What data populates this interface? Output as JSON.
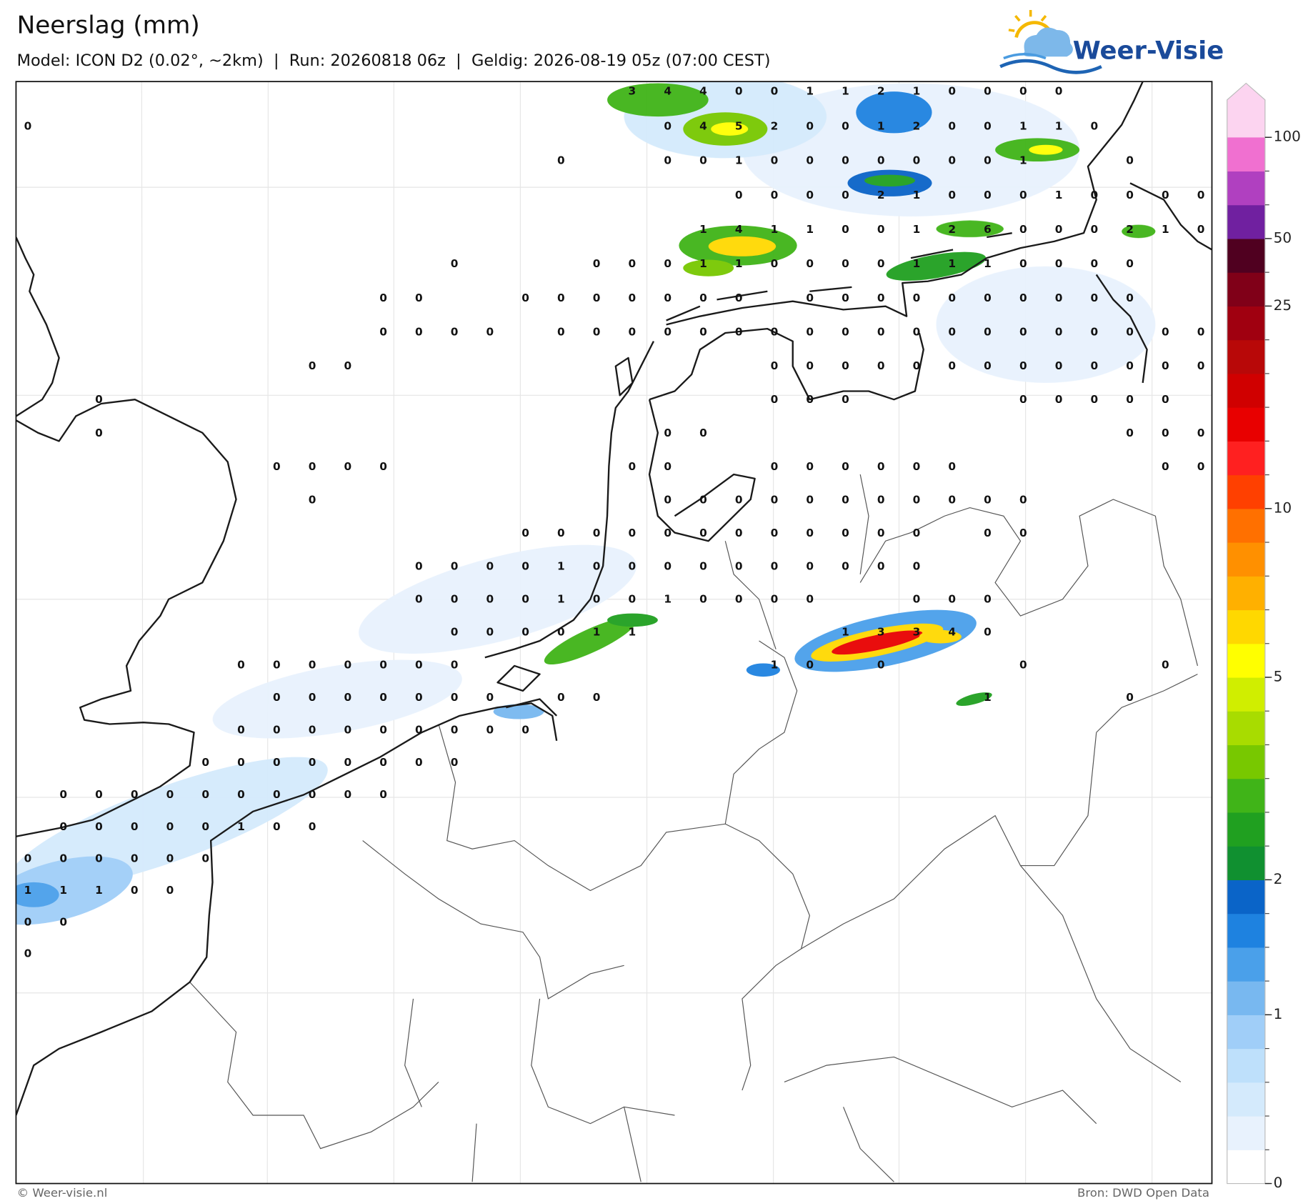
{
  "header": {
    "title": "Neerslag (mm)",
    "subtitle": "Model: ICON D2 (0.02°, ~2km)  |  Run: 20260818 06z  |  Geldig: 2026-08-19 05z (07:00 CEST)"
  },
  "logo": {
    "text": "Weer-Visie"
  },
  "map": {
    "precip_values": [
      [
        null,
        null,
        null,
        null,
        null,
        null,
        null,
        null,
        null,
        null,
        null,
        null,
        null,
        null,
        null,
        null,
        null,
        3,
        4,
        4,
        0,
        0,
        1,
        1,
        2,
        1,
        0,
        0,
        0,
        0,
        null,
        null,
        null,
        null
      ],
      [
        0,
        null,
        null,
        null,
        null,
        null,
        null,
        null,
        null,
        null,
        null,
        null,
        null,
        null,
        null,
        null,
        null,
        null,
        0,
        4,
        5,
        2,
        0,
        0,
        1,
        2,
        0,
        0,
        1,
        1,
        0,
        null,
        null,
        null
      ],
      [
        null,
        null,
        null,
        null,
        null,
        null,
        null,
        null,
        null,
        null,
        null,
        null,
        null,
        null,
        null,
        0,
        null,
        null,
        0,
        0,
        1,
        0,
        0,
        0,
        0,
        0,
        0,
        0,
        1,
        null,
        null,
        0,
        null,
        null
      ],
      [
        null,
        null,
        null,
        null,
        null,
        null,
        null,
        null,
        null,
        null,
        null,
        null,
        null,
        null,
        null,
        null,
        null,
        null,
        null,
        null,
        0,
        0,
        0,
        0,
        2,
        1,
        0,
        0,
        0,
        1,
        0,
        0,
        0,
        0
      ],
      [
        null,
        null,
        null,
        null,
        null,
        null,
        null,
        null,
        null,
        null,
        null,
        null,
        null,
        null,
        null,
        null,
        null,
        null,
        null,
        1,
        4,
        1,
        1,
        0,
        0,
        1,
        2,
        6,
        0,
        0,
        0,
        2,
        1,
        0
      ],
      [
        null,
        null,
        null,
        null,
        null,
        null,
        null,
        null,
        null,
        null,
        null,
        null,
        0,
        null,
        null,
        null,
        0,
        0,
        0,
        1,
        1,
        0,
        0,
        0,
        0,
        1,
        1,
        1,
        0,
        0,
        0,
        0,
        null,
        null
      ],
      [
        null,
        null,
        null,
        null,
        null,
        null,
        null,
        null,
        null,
        null,
        0,
        0,
        null,
        null,
        0,
        0,
        0,
        0,
        0,
        0,
        0,
        null,
        0,
        0,
        0,
        0,
        0,
        0,
        0,
        0,
        0,
        0,
        null,
        null
      ],
      [
        null,
        null,
        null,
        null,
        null,
        null,
        null,
        null,
        null,
        null,
        0,
        0,
        0,
        0,
        null,
        0,
        0,
        0,
        0,
        0,
        0,
        0,
        0,
        0,
        0,
        0,
        0,
        0,
        0,
        0,
        0,
        0,
        0,
        0
      ],
      [
        null,
        null,
        null,
        null,
        null,
        null,
        null,
        null,
        0,
        0,
        null,
        null,
        null,
        null,
        null,
        null,
        null,
        null,
        null,
        null,
        null,
        0,
        0,
        0,
        0,
        0,
        0,
        0,
        0,
        0,
        0,
        0,
        0,
        0
      ],
      [
        null,
        null,
        0,
        null,
        null,
        null,
        null,
        null,
        null,
        null,
        null,
        null,
        null,
        null,
        null,
        null,
        null,
        null,
        null,
        null,
        null,
        0,
        0,
        0,
        null,
        null,
        null,
        null,
        0,
        0,
        0,
        0,
        0,
        null
      ],
      [
        null,
        null,
        0,
        null,
        null,
        null,
        null,
        null,
        null,
        null,
        null,
        null,
        null,
        null,
        null,
        null,
        null,
        null,
        0,
        0,
        null,
        null,
        null,
        null,
        null,
        null,
        null,
        null,
        null,
        null,
        null,
        0,
        0,
        0
      ],
      [
        null,
        null,
        null,
        null,
        null,
        null,
        null,
        0,
        0,
        0,
        0,
        null,
        null,
        null,
        null,
        null,
        null,
        0,
        0,
        null,
        null,
        0,
        0,
        0,
        0,
        0,
        0,
        null,
        null,
        null,
        null,
        null,
        0,
        0
      ],
      [
        null,
        null,
        null,
        null,
        null,
        null,
        null,
        null,
        0,
        null,
        null,
        null,
        null,
        null,
        null,
        null,
        null,
        null,
        0,
        0,
        0,
        0,
        0,
        0,
        0,
        0,
        0,
        0,
        0,
        null,
        null,
        null,
        null,
        null
      ],
      [
        null,
        null,
        null,
        null,
        null,
        null,
        null,
        null,
        null,
        null,
        null,
        null,
        null,
        null,
        0,
        0,
        0,
        0,
        0,
        0,
        0,
        0,
        0,
        0,
        0,
        0,
        null,
        0,
        0,
        null,
        null,
        null,
        null,
        null
      ],
      [
        null,
        null,
        null,
        null,
        null,
        null,
        null,
        null,
        null,
        null,
        null,
        0,
        0,
        0,
        0,
        1,
        0,
        0,
        0,
        0,
        0,
        0,
        0,
        0,
        0,
        0,
        null,
        null,
        null,
        null,
        null,
        null,
        null,
        null
      ],
      [
        null,
        null,
        null,
        null,
        null,
        null,
        null,
        null,
        null,
        null,
        null,
        0,
        0,
        0,
        0,
        1,
        0,
        0,
        1,
        0,
        0,
        0,
        0,
        null,
        null,
        0,
        0,
        0,
        null,
        null,
        null,
        null,
        null,
        null
      ],
      [
        null,
        null,
        null,
        null,
        null,
        null,
        null,
        null,
        null,
        null,
        null,
        null,
        0,
        0,
        0,
        0,
        1,
        1,
        null,
        null,
        null,
        null,
        null,
        1,
        3,
        3,
        4,
        0,
        null,
        null,
        null,
        null,
        null,
        null
      ],
      [
        null,
        null,
        null,
        null,
        null,
        null,
        0,
        0,
        0,
        0,
        0,
        0,
        0,
        null,
        null,
        null,
        null,
        null,
        null,
        null,
        null,
        1,
        0,
        null,
        0,
        null,
        null,
        null,
        0,
        null,
        null,
        null,
        0,
        null
      ],
      [
        null,
        null,
        null,
        null,
        null,
        null,
        null,
        0,
        0,
        0,
        0,
        0,
        0,
        0,
        null,
        0,
        0,
        null,
        null,
        null,
        null,
        null,
        null,
        null,
        null,
        null,
        null,
        1,
        null,
        null,
        null,
        0,
        null,
        null
      ],
      [
        null,
        null,
        null,
        null,
        null,
        null,
        0,
        0,
        0,
        0,
        0,
        0,
        0,
        0,
        0,
        null,
        null,
        null,
        null,
        null,
        null,
        null,
        null,
        null,
        null,
        null,
        null,
        null,
        null,
        null,
        null,
        null,
        null,
        null
      ],
      [
        null,
        null,
        null,
        null,
        null,
        0,
        0,
        0,
        0,
        0,
        0,
        0,
        0,
        null,
        null,
        null,
        null,
        null,
        null,
        null,
        null,
        null,
        null,
        null,
        null,
        null,
        null,
        null,
        null,
        null,
        null,
        null,
        null,
        null
      ],
      [
        null,
        0,
        0,
        0,
        0,
        0,
        0,
        0,
        0,
        0,
        0,
        null,
        null,
        null,
        null,
        null,
        null,
        null,
        null,
        null,
        null,
        null,
        null,
        null,
        null,
        null,
        null,
        null,
        null,
        null,
        null,
        null,
        null,
        null
      ],
      [
        null,
        0,
        0,
        0,
        0,
        0,
        1,
        0,
        0,
        null,
        null,
        null,
        null,
        null,
        null,
        null,
        null,
        null,
        null,
        null,
        null,
        null,
        null,
        null,
        null,
        null,
        null,
        null,
        null,
        null,
        null,
        null,
        null,
        null
      ],
      [
        0,
        0,
        0,
        0,
        0,
        0,
        null,
        null,
        null,
        null,
        null,
        null,
        null,
        null,
        null,
        null,
        null,
        null,
        null,
        null,
        null,
        null,
        null,
        null,
        null,
        null,
        null,
        null,
        null,
        null,
        null,
        null,
        null,
        null
      ],
      [
        1,
        1,
        1,
        0,
        0,
        null,
        null,
        null,
        null,
        null,
        null,
        null,
        null,
        null,
        null,
        null,
        null,
        null,
        null,
        null,
        null,
        null,
        null,
        null,
        null,
        null,
        null,
        null,
        null,
        null,
        null,
        null,
        null,
        null
      ],
      [
        0,
        0,
        null,
        null,
        null,
        null,
        null,
        null,
        null,
        null,
        null,
        null,
        null,
        null,
        null,
        null,
        null,
        null,
        null,
        null,
        null,
        null,
        null,
        null,
        null,
        null,
        null,
        null,
        null,
        null,
        null,
        null,
        null,
        null
      ],
      [
        0,
        null,
        null,
        null,
        null,
        null,
        null,
        null,
        null,
        null,
        null,
        null,
        null,
        null,
        null,
        null,
        null,
        null,
        null,
        null,
        null,
        null,
        null,
        null,
        null,
        null,
        null,
        null,
        null,
        null,
        null,
        null,
        null,
        null
      ]
    ]
  },
  "colorbar": {
    "levels": [
      0,
      0.2,
      0.4,
      0.6,
      0.8,
      1,
      1.25,
      1.5,
      1.75,
      2,
      2.5,
      3,
      3.5,
      4,
      4.5,
      5,
      6,
      7,
      8,
      9,
      10,
      12,
      14,
      16,
      18,
      20,
      25,
      35,
      50,
      65,
      80,
      100
    ],
    "colors": [
      "#ffffff",
      "#e8f2fd",
      "#d4eafc",
      "#bee0fb",
      "#a0cef8",
      "#78b8f0",
      "#4aa0ea",
      "#1e82e0",
      "#0a64c8",
      "#109030",
      "#20a020",
      "#40b418",
      "#78c800",
      "#a8dc00",
      "#d0ee00",
      "#ffff00",
      "#ffd800",
      "#ffb000",
      "#ff9000",
      "#ff7000",
      "#ff4000",
      "#ff2020",
      "#e80000",
      "#d00000",
      "#b80808",
      "#a00010",
      "#800018",
      "#500020",
      "#7020a0",
      "#b040c0",
      "#f070d0"
    ],
    "over_color": "#fcd4f0",
    "ticks": [
      0,
      1,
      2,
      5,
      10,
      25,
      50,
      100
    ]
  },
  "footer": {
    "credit": "© Weer-visie.nl",
    "source": "Bron: DWD Open Data"
  }
}
